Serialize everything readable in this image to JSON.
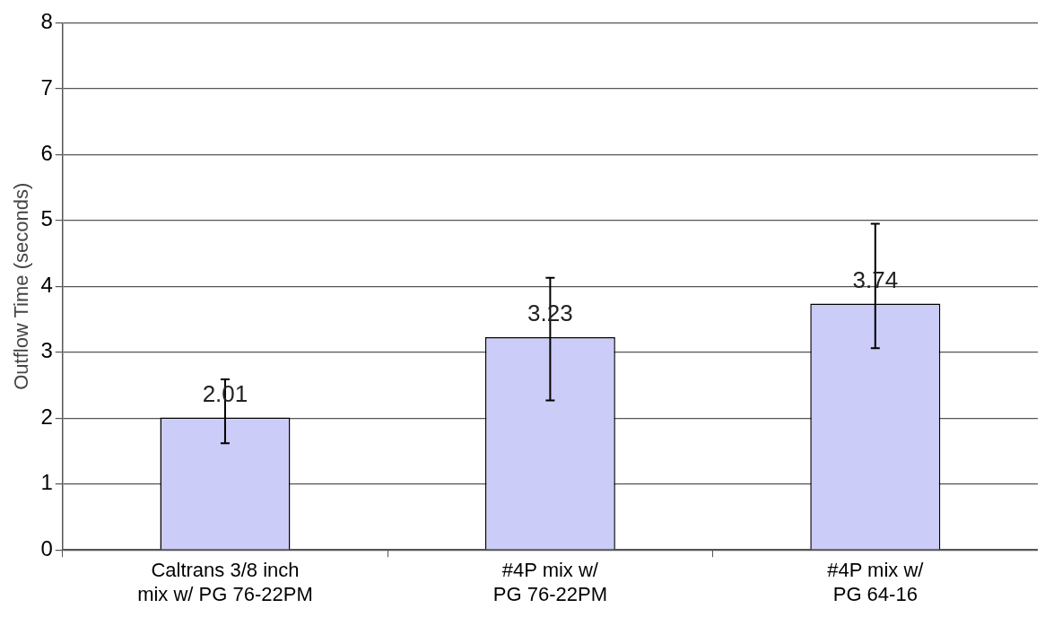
{
  "chart_data": {
    "type": "bar",
    "ylabel": "Outflow Time (seconds)",
    "categories": [
      "Caltrans 3/8 inch mix w/ PG 76-22PM",
      "#4P mix w/ PG 76-22PM",
      "#4P mix w/ PG 64-16"
    ],
    "values": [
      2.01,
      3.23,
      3.74
    ],
    "errors": [
      [
        1.62,
        2.59
      ],
      [
        2.27,
        4.13
      ],
      [
        3.06,
        4.95
      ]
    ],
    "color": "#ccccf8",
    "ylim": [
      0,
      8
    ],
    "yticks": [
      0,
      1,
      2,
      3,
      4,
      5,
      6,
      7,
      8
    ],
    "grid": "y",
    "legend": false,
    "data_labels": true
  }
}
